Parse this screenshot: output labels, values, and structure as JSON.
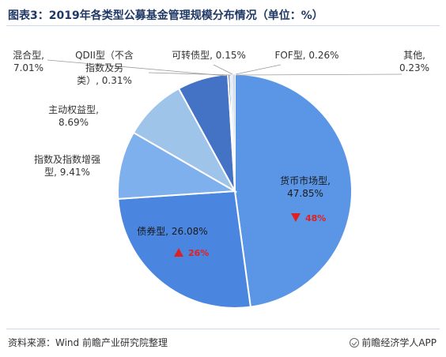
{
  "title": "图表3：2019年各类型公募基金管理规模分布情况（单位：%）",
  "footer": {
    "source": "资料来源：Wind  前瞻产业研究院整理",
    "brand": "前瞻经济学人APP"
  },
  "chart_data": {
    "type": "pie",
    "title": "图表3：2019年各类型公募基金管理规模分布情况（单位：%）",
    "slices": [
      {
        "name": "货币市场型",
        "value": 47.85,
        "label": [
          "货币市场型,",
          "47.85%"
        ],
        "color": "#5b96e6",
        "change": "48%",
        "direction": "down"
      },
      {
        "name": "债券型",
        "value": 26.08,
        "label": [
          "债券型, 26.08%"
        ],
        "color": "#4a86e0",
        "change": "26%",
        "direction": "up"
      },
      {
        "name": "指数及指数增强型",
        "value": 9.41,
        "label": [
          "指数及指数增强",
          "型, 9.41%"
        ],
        "color": "#7fb0ee"
      },
      {
        "name": "主动权益型",
        "value": 8.69,
        "label": [
          "主动权益型,",
          "8.69%"
        ],
        "color": "#9fc4ea"
      },
      {
        "name": "混合型",
        "value": 7.01,
        "label": [
          "混合型,",
          "7.01%"
        ],
        "color": "#4472c4"
      },
      {
        "name": "QDII型（不含指数及另类）",
        "value": 0.31,
        "label": [
          "QDII型（不含",
          "指数及另",
          "类）, 0.31%"
        ],
        "color": "#2f5597"
      },
      {
        "name": "可转债型",
        "value": 0.15,
        "label": [
          "可转债型, 0.15%"
        ],
        "color": "#c9d9f2"
      },
      {
        "name": "FOF型",
        "value": 0.26,
        "label": [
          "FOF型, 0.26%"
        ],
        "color": "#dbe6f6"
      },
      {
        "name": "其他",
        "value": 0.23,
        "label": [
          "其他,",
          "0.23%"
        ],
        "color": "#b0c8ea"
      }
    ]
  }
}
